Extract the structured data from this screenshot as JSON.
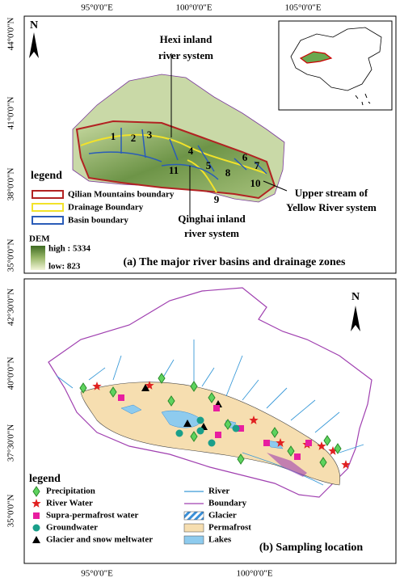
{
  "panel_a": {
    "x_labels": [
      "95°0'0\"E",
      "100°0'0\"E",
      "105°0'0\"E"
    ],
    "y_labels": [
      "44°0'0\"N",
      "41°0'0\"N",
      "38°0'0\"N",
      "35°0'0\"N"
    ],
    "north": "N",
    "basin_numbers": [
      "1",
      "2",
      "3",
      "4",
      "5",
      "6",
      "7",
      "8",
      "9",
      "10",
      "11"
    ],
    "annotations": {
      "hexi": [
        "Hexi inland",
        "river system"
      ],
      "yellow": [
        "Upper stream of",
        "Yellow River system"
      ],
      "qinghai": [
        "Qinghai inland",
        "river system"
      ]
    },
    "legend": {
      "title": "legend",
      "items": [
        "Qilian Mountains boundary",
        "Drainage Boundary",
        "Basin boundary"
      ],
      "dem": "DEM",
      "high": "high : 5334",
      "low": "low: 823"
    },
    "caption": "(a) The major river basins and drainage zones"
  },
  "panel_b": {
    "x_labels": [
      "95°0'0\"E",
      "100°0'0\"E"
    ],
    "y_labels": [
      "42°30'0\"N",
      "40°0'0\"N",
      "37°30'0\"N",
      "35°0'0\"N"
    ],
    "north": "N",
    "legend": {
      "title": "legend",
      "items": [
        "Precipitation",
        "River Water",
        "Supra-permafrost water",
        "Groundwater",
        "Glacier and snow meltwater",
        "River",
        "Boundary",
        "Glacier",
        "Permafrost",
        "Lakes"
      ]
    },
    "caption": "(b) Sampling location"
  }
}
